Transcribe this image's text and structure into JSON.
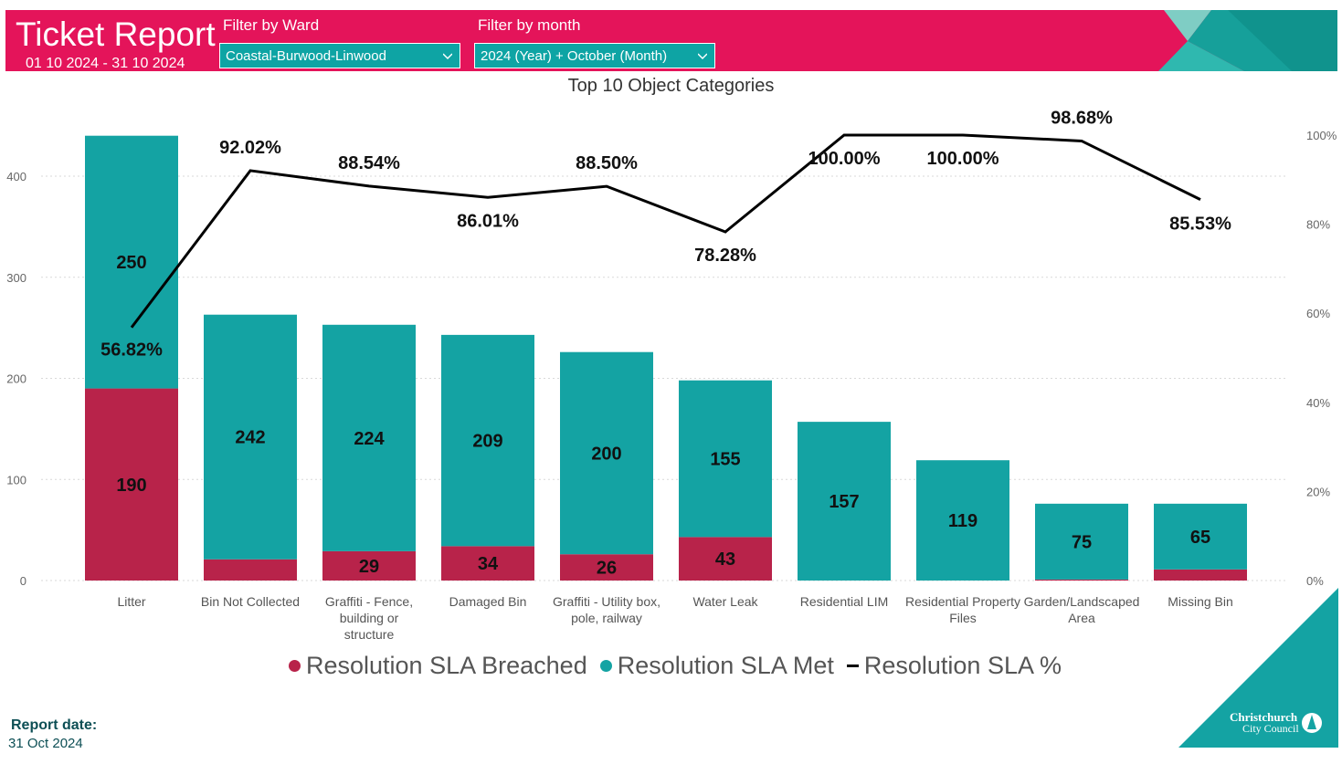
{
  "header": {
    "title": "Ticket Report",
    "date_range": "01 10 2024 - 31 10 2024",
    "ward_filter_label": "Filter by Ward",
    "ward_filter_value": "Coastal-Burwood-Linwood",
    "month_filter_label": "Filter by month",
    "month_filter_value": "2024 (Year) + October (Month)"
  },
  "footer": {
    "report_label": "Report date:",
    "report_date": "31 Oct 2024",
    "logo_line1": "Christchurch",
    "logo_line2": "City Council"
  },
  "colors": {
    "breached": "#b8234a",
    "met": "#14a3a3",
    "line": "#000000",
    "header": "#e4145a"
  },
  "chart_data": {
    "type": "bar",
    "title": "Top 10 Object Categories",
    "stacked": true,
    "categories": [
      [
        "Litter"
      ],
      [
        "Bin Not Collected"
      ],
      [
        "Graffiti - Fence,",
        "building or",
        "structure"
      ],
      [
        "Damaged Bin"
      ],
      [
        "Graffiti - Utility box,",
        "pole, railway"
      ],
      [
        "Water Leak"
      ],
      [
        "Residential LIM"
      ],
      [
        "Residential Property",
        "Files"
      ],
      [
        "Garden/Landscaped",
        "Area"
      ],
      [
        "Missing Bin"
      ]
    ],
    "series": [
      {
        "name": "Resolution SLA Breached",
        "values": [
          190,
          21,
          29,
          34,
          26,
          43,
          0,
          0,
          1,
          11
        ],
        "labels": [
          "190",
          "",
          "29",
          "34",
          "26",
          "43",
          "",
          "",
          "",
          ""
        ]
      },
      {
        "name": "Resolution SLA Met",
        "values": [
          250,
          242,
          224,
          209,
          200,
          155,
          157,
          119,
          75,
          65
        ],
        "labels": [
          "250",
          "242",
          "224",
          "209",
          "200",
          "155",
          "157",
          "119",
          "75",
          "65"
        ]
      }
    ],
    "line_series": {
      "name": "Resolution SLA %",
      "values": [
        56.82,
        92.02,
        88.54,
        86.01,
        88.5,
        78.28,
        100.0,
        100.0,
        98.68,
        85.53
      ],
      "labels": [
        "56.82%",
        "92.02%",
        "88.54%",
        "86.01%",
        "88.50%",
        "78.28%",
        "100.00%",
        "100.00%",
        "98.68%",
        "85.53%"
      ]
    },
    "y_left": {
      "lim": [
        0,
        440
      ],
      "ticks": [
        0,
        100,
        200,
        300,
        400
      ]
    },
    "y_right": {
      "lim": [
        0,
        100
      ],
      "ticks": [
        "0%",
        "20%",
        "40%",
        "60%",
        "80%",
        "100%"
      ]
    },
    "legend": [
      "Resolution SLA Breached",
      "Resolution SLA Met",
      "Resolution SLA %"
    ],
    "legend_position": "bottom"
  }
}
